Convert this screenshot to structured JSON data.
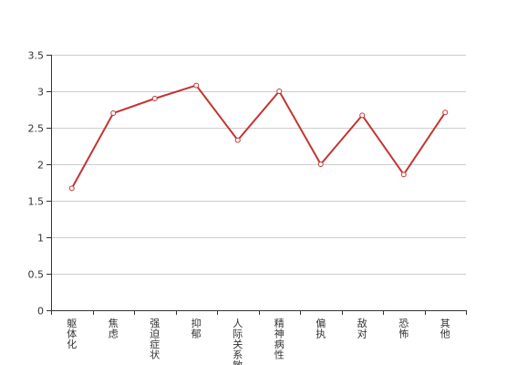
{
  "chart_data": {
    "type": "line",
    "categories": [
      "躯体化",
      "焦虑",
      "强迫症状",
      "抑郁",
      "人际关系敏感",
      "精神病性",
      "偏执",
      "敌对",
      "恐怖",
      "其他"
    ],
    "series": [
      {
        "values": [
          1.67,
          2.7,
          2.9,
          3.08,
          2.33,
          3.0,
          2.0,
          2.67,
          1.86,
          2.71
        ]
      }
    ],
    "yticks": [
      "0",
      "0.5",
      "1",
      "1.5",
      "2",
      "2.5",
      "3",
      "3.5"
    ],
    "ylim": [
      0,
      3.5
    ],
    "grid": true,
    "line_color": "#c23531"
  }
}
